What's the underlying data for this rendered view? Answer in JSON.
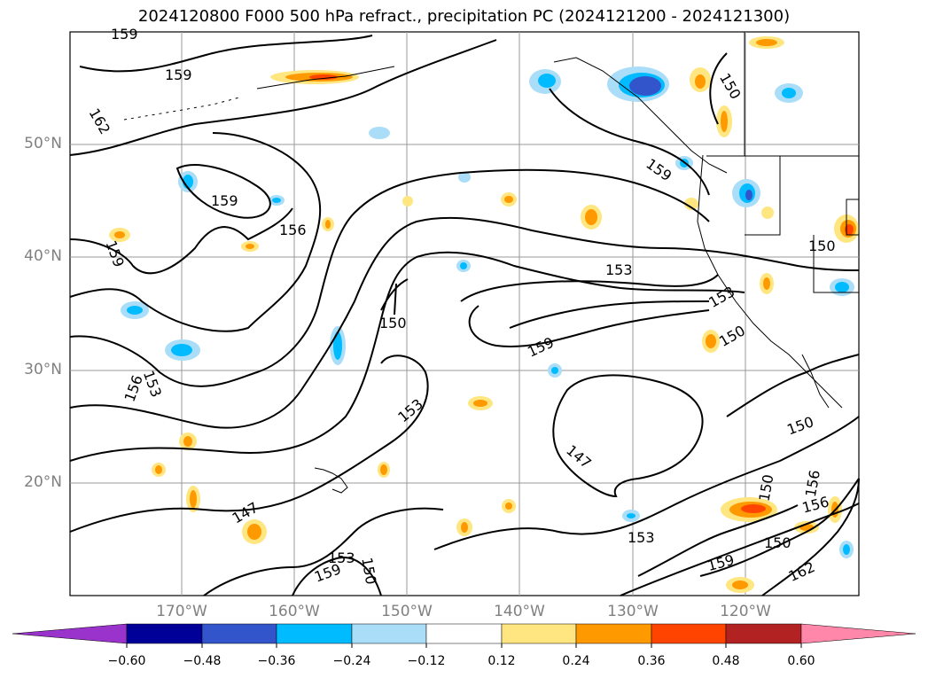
{
  "title": "2024120800 F000 500 hPa refract., precipitation PC (2024121200 - 2024121300)",
  "axes": {
    "lat_labels": [
      "50°N",
      "40°N",
      "30°N",
      "20°N"
    ],
    "lon_labels": [
      "170°W",
      "160°W",
      "150°W",
      "140°W",
      "130°W",
      "120°W"
    ]
  },
  "contour_labels": [
    "159",
    "159",
    "162",
    "159",
    "156",
    "159",
    "159",
    "153",
    "150",
    "159",
    "153",
    "150",
    "156",
    "153",
    "150",
    "147",
    "153",
    "147",
    "153",
    "150",
    "159",
    "159",
    "156",
    "150",
    "162",
    "156",
    "150",
    "150",
    "153",
    "150"
  ],
  "colorbar": {
    "ticks": [
      "−0.60",
      "−0.48",
      "−0.36",
      "−0.24",
      "−0.12",
      "0.12",
      "0.24",
      "0.36",
      "0.48",
      "0.60"
    ],
    "colors": [
      "#9933cc",
      "#000099",
      "#3355cc",
      "#00bbff",
      "#aaddf8",
      "#ffffff",
      "#ffe680",
      "#ff9900",
      "#ff4400",
      "#b22222",
      "#ff88aa"
    ]
  }
}
